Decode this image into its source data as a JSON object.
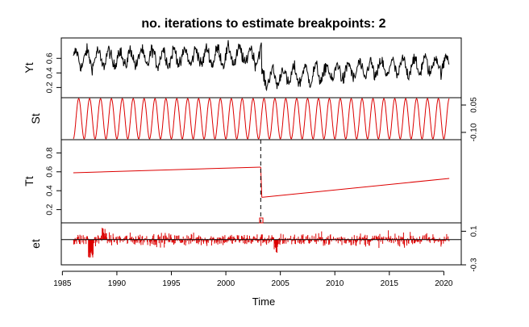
{
  "title": "no. iterations to estimate breakpoints: 2",
  "colors": {
    "data": "#000000",
    "component": "#dd0000",
    "axis": "#000000",
    "background": "#ffffff"
  },
  "chart_data": {
    "type": "line",
    "title": "no. iterations to estimate breakpoints: 2",
    "xlabel": "Time",
    "x_ticks": [
      1985,
      1990,
      1995,
      2000,
      2005,
      2010,
      2015,
      2020
    ],
    "xlim": [
      1984.9,
      2021.6
    ],
    "breakpoint": 2003.2,
    "breakpoint_ci": [
      2003.1,
      2003.4
    ],
    "panels": [
      {
        "name": "Yt",
        "ylabel": "Yt",
        "axis_side": "left",
        "ylim": [
          0.06,
          0.88
        ],
        "y_ticks": [
          0.2,
          0.4,
          0.6
        ],
        "tick_labels": [
          "0.2",
          "0.4",
          "0.6"
        ],
        "start": 1986.0,
        "end": 2020.5,
        "period": 1.0,
        "color": "#000000",
        "segments": [
          {
            "t0": 1986.0,
            "t1": 2003.2,
            "level0": 0.59,
            "level1": 0.64,
            "amp": 0.11
          },
          {
            "t0": 2003.3,
            "t1": 2020.5,
            "level0": 0.33,
            "level1": 0.53,
            "amp": 0.11
          }
        ],
        "noise": 0.06
      },
      {
        "name": "St",
        "ylabel": "St",
        "axis_side": "right",
        "ylim": [
          -0.14,
          0.09
        ],
        "y_ticks": [
          0.05,
          -0.1
        ],
        "tick_labels": [
          "0.05",
          "-0.10"
        ],
        "start": 1986.0,
        "end": 2020.5,
        "period": 1.0,
        "amp": 0.11,
        "center": -0.025,
        "color": "#dd0000"
      },
      {
        "name": "Tt",
        "ylabel": "Tt",
        "axis_side": "left",
        "ylim": [
          0.06,
          0.94
        ],
        "y_ticks": [
          0.2,
          0.4,
          0.6,
          0.8
        ],
        "tick_labels": [
          "0.2",
          "0.4",
          "0.6",
          "0.8"
        ],
        "color": "#dd0000",
        "segments": [
          {
            "x": [
              1986.0,
              2003.2
            ],
            "y": [
              0.59,
              0.65
            ]
          },
          {
            "x": [
              2003.2,
              2003.3
            ],
            "y": [
              0.65,
              0.33
            ]
          },
          {
            "x": [
              2003.3,
              2020.5
            ],
            "y": [
              0.33,
              0.53
            ]
          }
        ]
      },
      {
        "name": "et",
        "ylabel": "et",
        "axis_side": "right",
        "ylim": [
          -0.3,
          0.2
        ],
        "y_ticks": [
          0.1,
          -0.3
        ],
        "tick_labels": [
          "0.1",
          "-0.3"
        ],
        "start": 1986.0,
        "end": 2020.5,
        "baseline": 0.0,
        "color": "#dd0000",
        "noise": 0.05
      }
    ]
  }
}
